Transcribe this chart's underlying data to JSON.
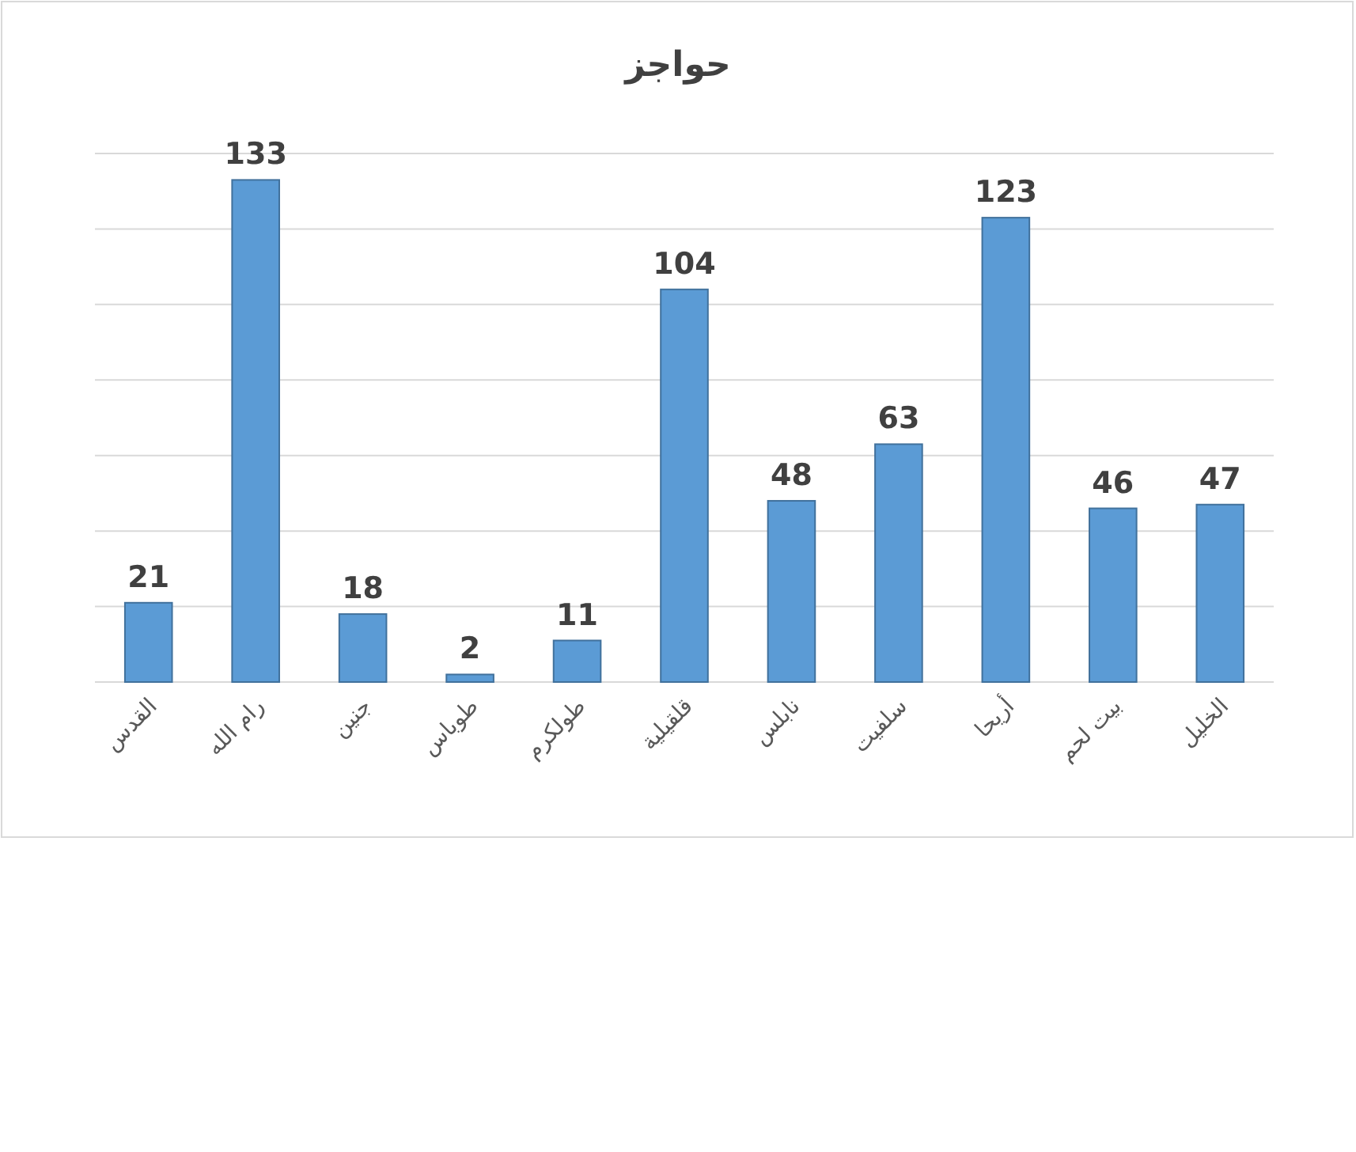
{
  "chart_data": {
    "type": "bar",
    "title": "حواجز",
    "categories": [
      "القدس",
      "رام الله",
      "جنين",
      "طوباس",
      "طولكرم",
      "قلقيلية",
      "نابلس",
      "سلفيت",
      "أريحا",
      "بيت لحم",
      "الخليل"
    ],
    "values": [
      21,
      133,
      18,
      2,
      11,
      104,
      48,
      63,
      123,
      46,
      47
    ],
    "color": "#5b9bd5",
    "ylim": [
      0,
      140
    ],
    "yticks": [
      {
        "value": 0,
        "label": null
      },
      {
        "value": 20,
        "label": null
      },
      {
        "value": 40,
        "label": null
      },
      {
        "value": 60,
        "label": null
      },
      {
        "value": 80,
        "label": null
      },
      {
        "value": 100,
        "label": null
      },
      {
        "value": 120,
        "label": null
      },
      {
        "value": 140,
        "label": null
      }
    ],
    "grid": "y",
    "data_labels": true
  }
}
